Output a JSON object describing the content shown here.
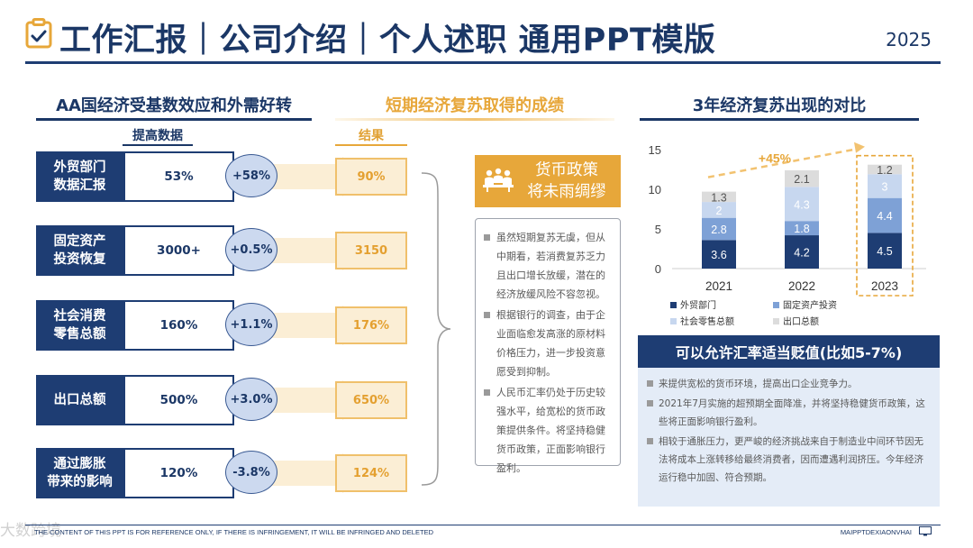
{
  "header": {
    "title": "工作汇报｜公司介绍｜个人述职 通用PPT模版",
    "year": "2025"
  },
  "left": {
    "title": "AA国经济受基数效应和外需好转",
    "subhead": "提高数据",
    "rows": [
      {
        "label": "外贸部门\n数据汇报",
        "value": "53%",
        "change": "+58%",
        "result": "90%"
      },
      {
        "label": "固定资产\n投资恢复",
        "value": "3000+",
        "change": "+0.5%",
        "result": "3150"
      },
      {
        "label": "社会消费\n零售总额",
        "value": "160%",
        "change": "+1.1%",
        "result": "176%"
      },
      {
        "label": "出口总额",
        "value": "500%",
        "change": "+3.0%",
        "result": "650%"
      },
      {
        "label": "通过膨胀\n带来的影响",
        "value": "120%",
        "change": "-3.8%",
        "result": "124%"
      }
    ]
  },
  "middle": {
    "title": "短期经济复苏取得的成绩",
    "subhead": "结果",
    "policy_title": "货币政策\n将未雨绸缪",
    "notes": [
      "虽然短期复苏无虞，但从中期看，若消费复苏乏力且出口增长放缓，潜在的经济放缓风险不容忽视。",
      "根据银行的调查，由于企业面临愈发高涨的原材料价格压力，进一步投资意愿受到抑制。",
      "人民币汇率仍处于历史较强水平，给宽松的货币政策提供条件。将坚持稳健货币政策，正面影响银行盈利。"
    ]
  },
  "right": {
    "title": "3年经济复苏出现的对比",
    "growth_label": "+45%",
    "fx_title": "可以允许汇率适当贬值(比如5-7%)",
    "fx_notes": [
      "来提供宽松的货币环境，提高出口企业竞争力。",
      "2021年7月实施的超预期全面降准，并将坚持稳健货币政策，这些将正面影响银行盈利。",
      "相较于通胀压力，更严峻的经济挑战来自于制造业中间环节因无法将成本上涨转移给最终消费者，因而遭遇利润挤压。今年经济运行稳中加固、符合预期。"
    ]
  },
  "chart_data": {
    "type": "bar",
    "stacked": true,
    "categories": [
      "2021",
      "2022",
      "2023"
    ],
    "series": [
      {
        "name": "外贸部门",
        "values": [
          3.6,
          4.2,
          4.5
        ],
        "color": "#1e3d73"
      },
      {
        "name": "固定资产投资",
        "values": [
          2.8,
          1.8,
          4.4
        ],
        "color": "#7ea1d6"
      },
      {
        "name": "社会零售总额",
        "values": [
          2,
          4.3,
          3
        ],
        "color": "#c7d7ef"
      },
      {
        "name": "出口总额",
        "values": [
          1.3,
          2.1,
          1.2
        ],
        "color": "#dcdcdc"
      }
    ],
    "yticks": [
      0,
      5,
      10,
      15
    ],
    "ylim": [
      0,
      15
    ],
    "legend_position": "bottom",
    "highlight_category": "2023"
  },
  "footer": {
    "disclaimer": "THE CONTENT OF THIS PPT IS FOR REFERENCE ONLY, IF THERE IS INFRINGEMENT, IT WILL BE INFRINGED AND DELETED",
    "site": "MAIPPTDEXIAONVHAI",
    "watermark": "大数跨境"
  },
  "colors": {
    "navy": "#1e3d73",
    "gold": "#e7a73a",
    "light_blue": "#ccd9ef",
    "cream": "#fbeed5"
  }
}
